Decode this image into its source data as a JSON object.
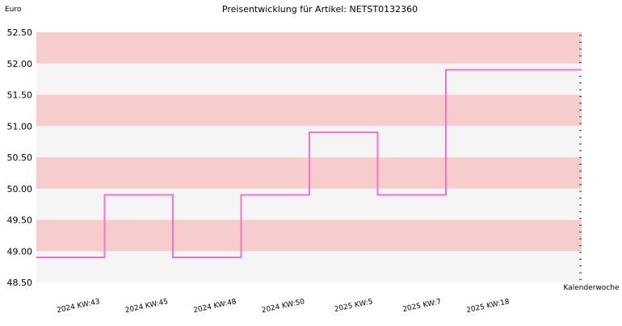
{
  "chart_data": {
    "type": "line",
    "step": true,
    "title": "Preisentwicklung für Artikel: NETST0132360",
    "ylabel": "Euro",
    "xlabel": "Kalenderwoche",
    "categories": [
      "2024 KW:43",
      "2024 KW:45",
      "2024 KW:48",
      "2024 KW:50",
      "2025 KW:5",
      "2025 KW:7",
      "2025 KW:18"
    ],
    "ylim": [
      48.5,
      52.5
    ],
    "yticks": [
      "48.50",
      "49.00",
      "49.50",
      "50.00",
      "50.50",
      "51.00",
      "51.50",
      "52.00",
      "52.50"
    ],
    "series": [
      {
        "values": [
          48.9,
          49.9,
          48.9,
          49.9,
          50.9,
          49.9,
          51.9
        ],
        "color": "#ff6ec7"
      }
    ],
    "band_colors": [
      "#f5f5f5",
      "#f7cccc"
    ],
    "grid": true,
    "legend": "none"
  }
}
